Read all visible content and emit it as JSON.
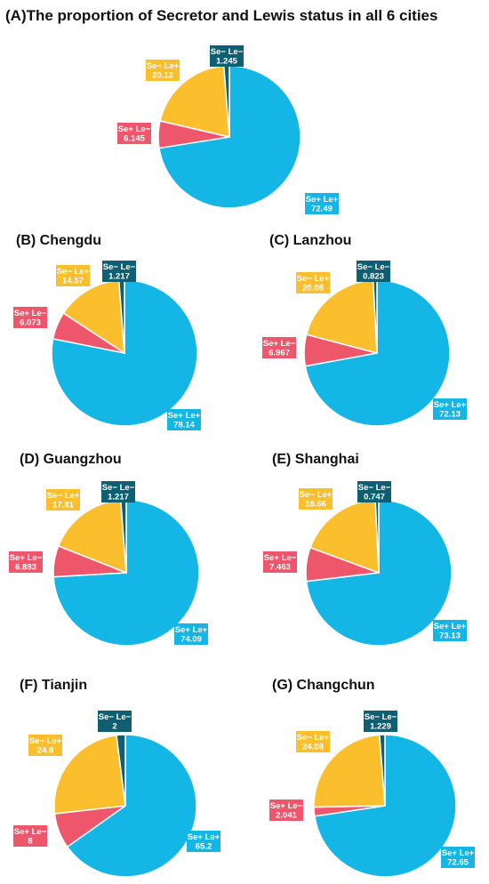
{
  "colors": {
    "Se+ Le+": "#13b6e4",
    "Se- Le+": "#fbbf2d",
    "Se+ Le-": "#ee566b",
    "Se- Le-": "#0f5f72"
  },
  "chart_data": [
    {
      "type": "pie",
      "title": "(A)The proportion of Secretor and Lewis status in all 6 cities",
      "slices": [
        {
          "label": "Se+ Le+",
          "value": 72.49
        },
        {
          "label": "Se+ Le−",
          "value": 6.145
        },
        {
          "label": "Se− Le+",
          "value": 20.12
        },
        {
          "label": "Se− Le−",
          "value": 1.245
        }
      ]
    },
    {
      "type": "pie",
      "title": "(B) Chengdu",
      "slices": [
        {
          "label": "Se+ Le+",
          "value": 78.14
        },
        {
          "label": "Se+ Le−",
          "value": 6.073
        },
        {
          "label": "Se− Le+",
          "value": 14.57
        },
        {
          "label": "Se− Le−",
          "value": 1.217
        }
      ]
    },
    {
      "type": "pie",
      "title": "(C) Lanzhou",
      "slices": [
        {
          "label": "Se+ Le+",
          "value": 72.13
        },
        {
          "label": "Se+ Le−",
          "value": 6.967
        },
        {
          "label": "Se− Le+",
          "value": 20.08
        },
        {
          "label": "Se− Le−",
          "value": 0.823
        }
      ]
    },
    {
      "type": "pie",
      "title": "(D) Guangzhou",
      "slices": [
        {
          "label": "Se+ Le+",
          "value": 74.09
        },
        {
          "label": "Se+ Le−",
          "value": 6.883
        },
        {
          "label": "Se− Le+",
          "value": 17.81
        },
        {
          "label": "Se− Le−",
          "value": 1.217
        }
      ]
    },
    {
      "type": "pie",
      "title": "(E) Shanghai",
      "slices": [
        {
          "label": "Se+ Le+",
          "value": 73.13
        },
        {
          "label": "Se+ Le−",
          "value": 7.463
        },
        {
          "label": "Se− Le+",
          "value": 18.66
        },
        {
          "label": "Se− Le−",
          "value": 0.747
        }
      ]
    },
    {
      "type": "pie",
      "title": "(F) Tianjin",
      "slices": [
        {
          "label": "Se+ Le+",
          "value": 65.2
        },
        {
          "label": "Se+ Le−",
          "value": 8
        },
        {
          "label": "Se− Le+",
          "value": 24.8
        },
        {
          "label": "Se− Le−",
          "value": 2
        }
      ]
    },
    {
      "type": "pie",
      "title": "(G) Changchun",
      "slices": [
        {
          "label": "Se+ Le+",
          "value": 72.65
        },
        {
          "label": "Se+ Le−",
          "value": 2.041
        },
        {
          "label": "Se− Le+",
          "value": 24.08
        },
        {
          "label": "Se− Le−",
          "value": 1.229
        }
      ]
    }
  ]
}
